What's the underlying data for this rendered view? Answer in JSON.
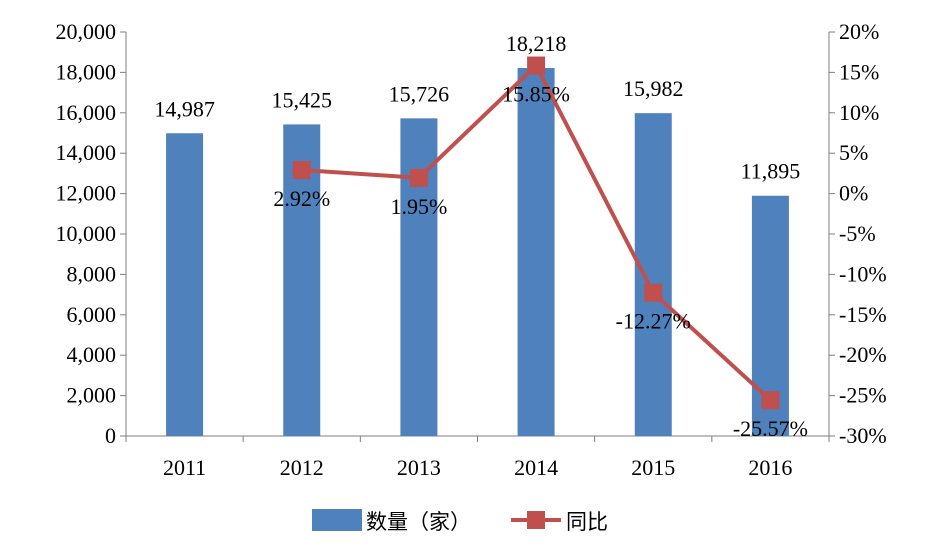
{
  "chart_data": {
    "type": "bar",
    "title": "",
    "categories": [
      "2011",
      "2012",
      "2013",
      "2014",
      "2015",
      "2016"
    ],
    "series": [
      {
        "name": "数量（家）",
        "type": "bar",
        "axis": "left",
        "color": "#4F81BD",
        "values": [
          14987,
          15425,
          15726,
          18218,
          15982,
          11895
        ],
        "labels": [
          "14,987",
          "15,425",
          "15,726",
          "18,218",
          "15,982",
          "11,895"
        ]
      },
      {
        "name": "同比",
        "type": "line",
        "axis": "right",
        "color": "#C0504D",
        "marker": "square",
        "values": [
          null,
          2.92,
          1.95,
          15.85,
          -12.27,
          -25.57
        ],
        "labels": [
          "",
          "2.92%",
          "1.95%",
          "15.85%",
          "-12.27%",
          "-25.57%"
        ]
      }
    ],
    "y_left": {
      "min": 0,
      "max": 20000,
      "ticks": [
        "0",
        "2,000",
        "4,000",
        "6,000",
        "8,000",
        "10,000",
        "12,000",
        "14,000",
        "16,000",
        "18,000",
        "20,000"
      ]
    },
    "y_right": {
      "min": -30,
      "max": 20,
      "ticks": [
        "-30%",
        "-25%",
        "-20%",
        "-15%",
        "-10%",
        "-5%",
        "0%",
        "5%",
        "10%",
        "15%",
        "20%"
      ]
    },
    "grid": false,
    "legend_position": "bottom"
  }
}
